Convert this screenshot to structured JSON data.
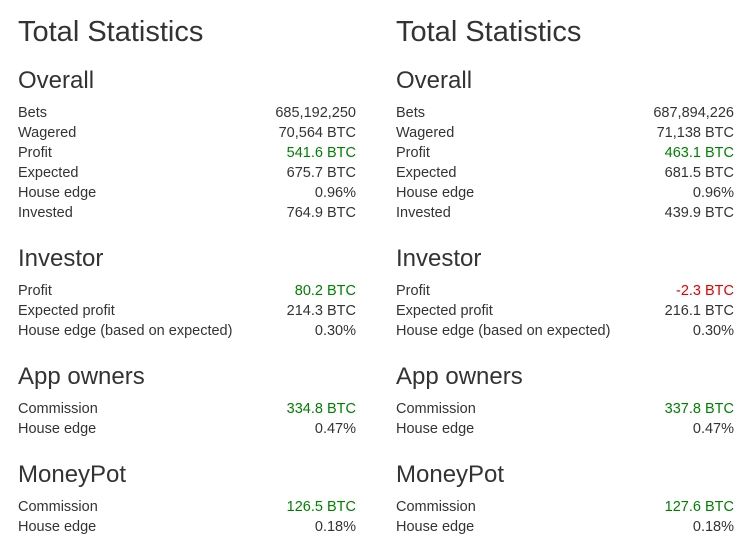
{
  "colors": {
    "text": "#333333",
    "positive": "#008000",
    "negative": "#e60000"
  },
  "panels": [
    {
      "title": "Total Statistics",
      "overall": {
        "heading": "Overall",
        "rows": [
          {
            "label": "Bets",
            "value": "685,192,250",
            "tone": "neutral"
          },
          {
            "label": "Wagered",
            "value": "70,564 BTC",
            "tone": "neutral"
          },
          {
            "label": "Profit",
            "value": "541.6 BTC",
            "tone": "positive"
          },
          {
            "label": "Expected",
            "value": "675.7 BTC",
            "tone": "neutral"
          },
          {
            "label": "House edge",
            "value": "0.96%",
            "tone": "neutral"
          },
          {
            "label": "Invested",
            "value": "764.9 BTC",
            "tone": "neutral"
          }
        ]
      },
      "investor": {
        "heading": "Investor",
        "rows": [
          {
            "label": "Profit",
            "value": "80.2 BTC",
            "tone": "positive"
          },
          {
            "label": "Expected profit",
            "value": "214.3 BTC",
            "tone": "neutral"
          },
          {
            "label": "House edge (based on expected)",
            "value": "0.30%",
            "tone": "neutral"
          }
        ]
      },
      "app_owners": {
        "heading": "App owners",
        "rows": [
          {
            "label": "Commission",
            "value": "334.8 BTC",
            "tone": "positive"
          },
          {
            "label": "House edge",
            "value": "0.47%",
            "tone": "neutral"
          }
        ]
      },
      "moneypot": {
        "heading": "MoneyPot",
        "rows": [
          {
            "label": "Commission",
            "value": "126.5 BTC",
            "tone": "positive"
          },
          {
            "label": "House edge",
            "value": "0.18%",
            "tone": "neutral"
          }
        ]
      }
    },
    {
      "title": "Total Statistics",
      "overall": {
        "heading": "Overall",
        "rows": [
          {
            "label": "Bets",
            "value": "687,894,226",
            "tone": "neutral"
          },
          {
            "label": "Wagered",
            "value": "71,138 BTC",
            "tone": "neutral"
          },
          {
            "label": "Profit",
            "value": "463.1 BTC",
            "tone": "positive"
          },
          {
            "label": "Expected",
            "value": "681.5 BTC",
            "tone": "neutral"
          },
          {
            "label": "House edge",
            "value": "0.96%",
            "tone": "neutral"
          },
          {
            "label": "Invested",
            "value": "439.9 BTC",
            "tone": "neutral"
          }
        ]
      },
      "investor": {
        "heading": "Investor",
        "rows": [
          {
            "label": "Profit",
            "value": "-2.3 BTC",
            "tone": "negative"
          },
          {
            "label": "Expected profit",
            "value": "216.1 BTC",
            "tone": "neutral"
          },
          {
            "label": "House edge (based on expected)",
            "value": "0.30%",
            "tone": "neutral"
          }
        ]
      },
      "app_owners": {
        "heading": "App owners",
        "rows": [
          {
            "label": "Commission",
            "value": "337.8 BTC",
            "tone": "positive"
          },
          {
            "label": "House edge",
            "value": "0.47%",
            "tone": "neutral"
          }
        ]
      },
      "moneypot": {
        "heading": "MoneyPot",
        "rows": [
          {
            "label": "Commission",
            "value": "127.6 BTC",
            "tone": "positive"
          },
          {
            "label": "House edge",
            "value": "0.18%",
            "tone": "neutral"
          }
        ]
      }
    }
  ]
}
